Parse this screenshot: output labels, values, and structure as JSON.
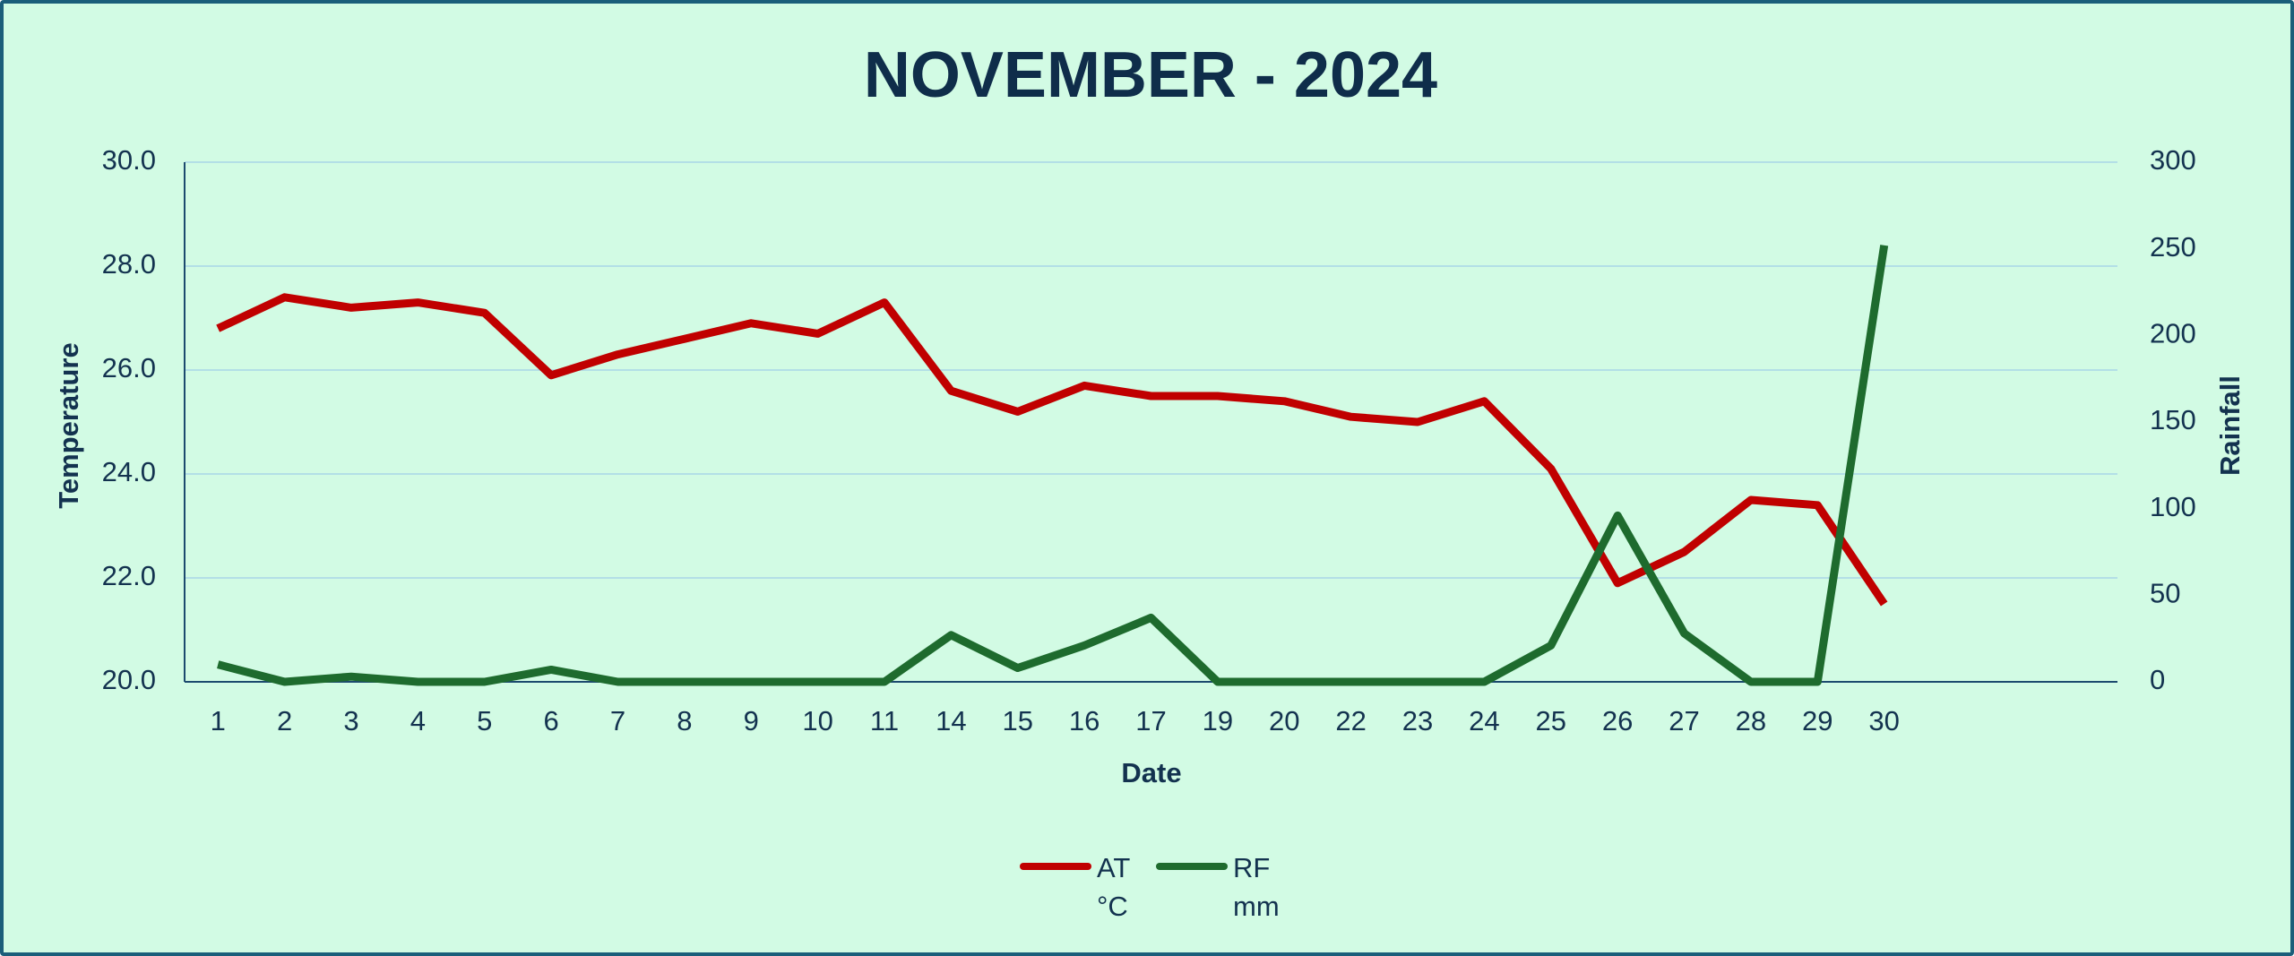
{
  "chart_data": {
    "type": "line",
    "title": "NOVEMBER - 2024",
    "x_label": "Date",
    "y_label": "Temperature",
    "y2_label": "Rainfall",
    "categories": [
      "1",
      "2",
      "3",
      "4",
      "5",
      "6",
      "7",
      "8",
      "9",
      "10",
      "11",
      "14",
      "15",
      "16",
      "17",
      "19",
      "20",
      "22",
      "23",
      "24",
      "25",
      "26",
      "27",
      "28",
      "29",
      "30",
      null,
      null,
      null
    ],
    "series": [
      {
        "name": "AT °C",
        "color": "#c00000",
        "values": [
          26.8,
          27.4,
          27.2,
          27.3,
          27.1,
          25.9,
          26.3,
          26.6,
          26.9,
          26.7,
          27.3,
          25.6,
          25.2,
          25.7,
          25.5,
          25.5,
          25.4,
          25.1,
          25.0,
          25.4,
          24.1,
          21.9,
          22.5,
          23.5,
          23.4,
          21.5,
          null,
          null,
          null
        ]
      },
      {
        "name": "RF mm",
        "color": "#1e6b2e",
        "axis": "y2",
        "values": [
          10,
          0,
          3,
          0,
          0,
          7,
          0,
          0,
          0,
          0,
          0,
          27,
          8,
          21,
          37,
          0,
          0,
          0,
          0,
          0,
          21,
          96,
          28,
          0,
          0,
          252,
          null,
          null,
          null
        ]
      }
    ],
    "ylim": [
      20,
      30
    ],
    "yticks": [
      {
        "value": 20,
        "label": "20.0"
      },
      {
        "value": 22,
        "label": "22.0"
      },
      {
        "value": 24,
        "label": "24.0"
      },
      {
        "value": 26,
        "label": "26.0"
      },
      {
        "value": 28,
        "label": "28.0"
      },
      {
        "value": 30,
        "label": "30.0"
      }
    ],
    "y2lim": [
      0,
      300
    ],
    "y2ticks": [
      0,
      50,
      100,
      150,
      200,
      250,
      300
    ],
    "grid": true,
    "legend": "bottom"
  }
}
